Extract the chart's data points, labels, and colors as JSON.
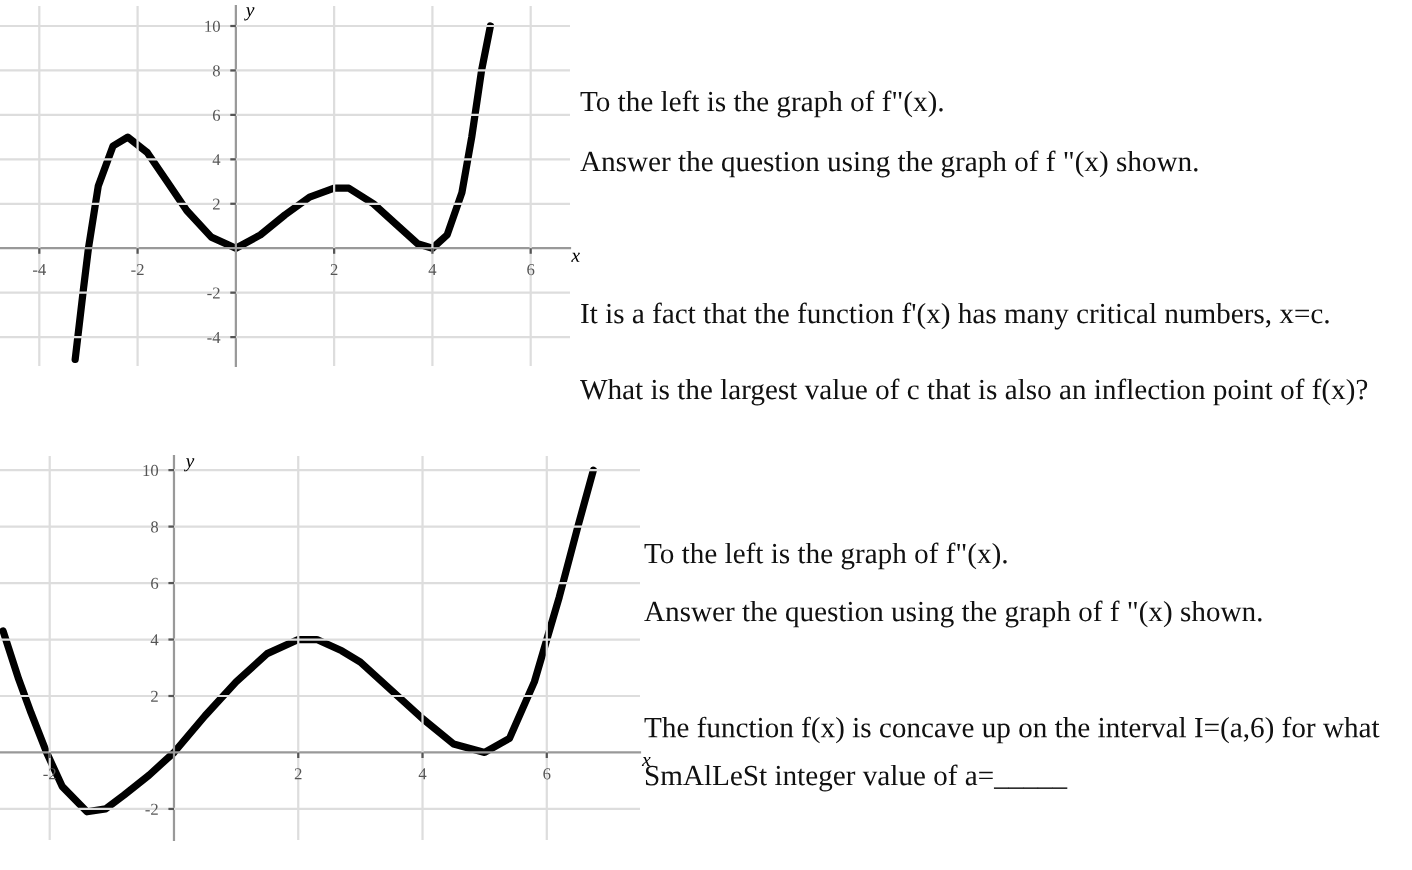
{
  "chart_data": [
    {
      "type": "line",
      "xlabel": "x",
      "ylabel": "y",
      "xlim": [
        -4.8,
        6.8
      ],
      "ylim": [
        -5.3,
        10.9
      ],
      "xticks": [
        -4,
        -2,
        2,
        4,
        6
      ],
      "yticks": [
        -4,
        -2,
        2,
        4,
        6,
        8,
        10
      ],
      "grid": true,
      "series": [
        {
          "color": "#000000",
          "x": [
            -3.27,
            -3.1,
            -3.0,
            -2.8,
            -2.5,
            -2.2,
            -1.8,
            -1.4,
            -1.0,
            -0.5,
            0,
            0.5,
            1.0,
            1.5,
            2.0,
            2.3,
            2.8,
            3.3,
            3.7,
            4.0,
            4.3,
            4.6,
            4.8,
            5.0,
            5.18
          ],
          "values": [
            -5,
            -1.8,
            0,
            2.8,
            4.6,
            5,
            4.3,
            3,
            1.7,
            0.5,
            0,
            0.6,
            1.5,
            2.3,
            2.7,
            2.7,
            2.0,
            1.0,
            0.2,
            0,
            0.6,
            2.5,
            5,
            8,
            10
          ]
        }
      ],
      "annotations": [
        "To the left is the graph of f\"(x).",
        "Answer the question using the graph of f \"(x) shown.",
        "It is a fact that the function f'(x) has many critical numbers, x=c.",
        "What is the largest value of c that is also an inflection point of f(x)?"
      ]
    },
    {
      "type": "line",
      "xlabel": "x",
      "ylabel": "y",
      "xlim": [
        -2.8,
        7.5
      ],
      "ylim": [
        -3.1,
        10.5
      ],
      "xticks": [
        -2,
        2,
        4,
        6
      ],
      "yticks": [
        -2,
        2,
        4,
        6,
        8,
        10
      ],
      "grid": true,
      "series": [
        {
          "color": "#000000",
          "x": [
            -2.75,
            -2.5,
            -2.3,
            -2.05,
            -1.8,
            -1.4,
            -1.1,
            -0.8,
            -0.4,
            0,
            0.5,
            1.0,
            1.5,
            2.0,
            2.3,
            2.7,
            3.0,
            3.5,
            4.0,
            4.5,
            5.0,
            5.4,
            5.8,
            6.2,
            6.5,
            6.75
          ],
          "values": [
            4.3,
            2.6,
            1.4,
            0,
            -1.2,
            -2.1,
            -2.0,
            -1.5,
            -0.8,
            0,
            1.3,
            2.5,
            3.5,
            4.0,
            4.0,
            3.6,
            3.2,
            2.2,
            1.2,
            0.3,
            0,
            0.5,
            2.5,
            5.5,
            8,
            10
          ]
        }
      ],
      "annotations": [
        "To the left is the graph of f\"(x).",
        "Answer the question using the graph of f \"(x) shown.",
        "The function f(x) is concave up on the interval I=(a,6) for what",
        "SmAlLeSt integer value of a=_____"
      ]
    }
  ]
}
